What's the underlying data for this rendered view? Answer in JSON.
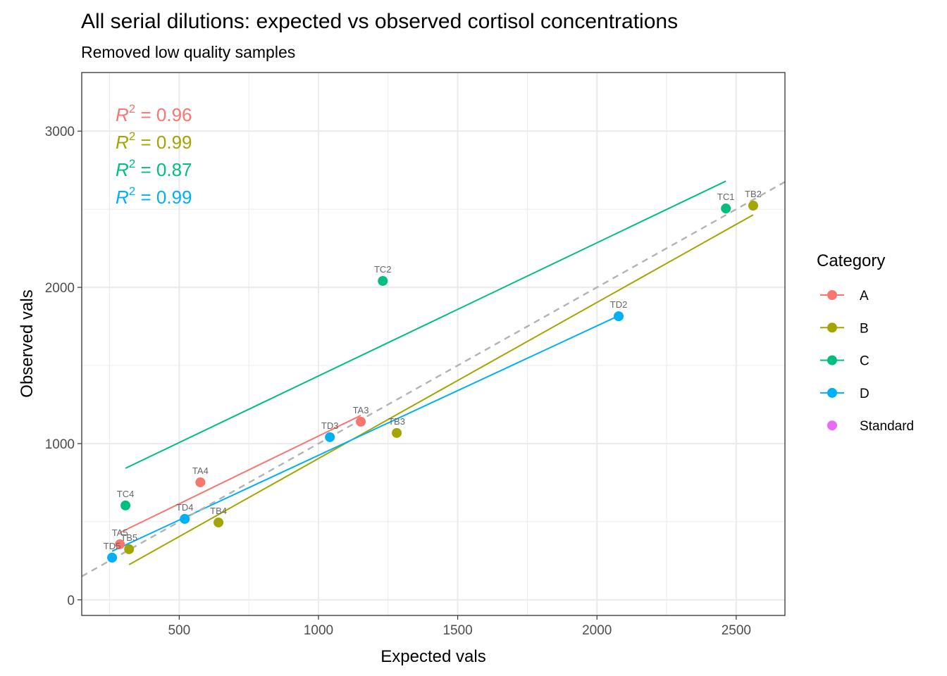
{
  "chart_data": {
    "type": "scatter",
    "title": "All serial dilutions: expected vs observed cortisol concentrations",
    "subtitle": "Removed low quality samples",
    "xlabel": "Expected vals",
    "ylabel": "Observed vals",
    "xlim": [
      150,
      2675
    ],
    "ylim": [
      -100,
      3375
    ],
    "xticks": [
      500,
      1000,
      1500,
      2000,
      2500
    ],
    "xminor": [
      250,
      750,
      1250,
      1750,
      2250
    ],
    "yticks": [
      0,
      1000,
      2000,
      3000
    ],
    "yminor": [
      500,
      1500,
      2500
    ],
    "grid": true,
    "reference_line": {
      "type": "identity",
      "style": "dashed",
      "color": "#b3b3b3"
    },
    "legend": {
      "title": "Category",
      "placement": "right",
      "entries": [
        {
          "name": "A",
          "color": "#F8766D",
          "line": true
        },
        {
          "name": "B",
          "color": "#A3A500",
          "line": true
        },
        {
          "name": "C",
          "color": "#00BF7D",
          "line": true
        },
        {
          "name": "D",
          "color": "#00B0F6",
          "line": true
        },
        {
          "name": "Standard",
          "color": "#E76BF3",
          "line": false
        }
      ]
    },
    "annotations": [
      {
        "label": "R",
        "sup": "2",
        "text": " = 0.96",
        "color": "#F8766D"
      },
      {
        "label": "R",
        "sup": "2",
        "text": " = 0.99",
        "color": "#A3A500"
      },
      {
        "label": "R",
        "sup": "2",
        "text": " = 0.87",
        "color": "#00BF7D"
      },
      {
        "label": "R",
        "sup": "2",
        "text": " = 0.99",
        "color": "#00B0F6"
      }
    ],
    "series": [
      {
        "name": "A",
        "color": "#F8766D",
        "fit": [
          [
            287,
            430
          ],
          [
            1152,
            1180
          ]
        ],
        "points": [
          {
            "label": "TA3",
            "x": 1152,
            "y": 1140
          },
          {
            "label": "TA4",
            "x": 576,
            "y": 752
          },
          {
            "label": "TA5",
            "x": 287,
            "y": 356
          }
        ]
      },
      {
        "name": "B",
        "color": "#A3A500",
        "fit": [
          [
            320,
            225
          ],
          [
            2561,
            2464
          ]
        ],
        "points": [
          {
            "label": "TB2",
            "x": 2561,
            "y": 2523
          },
          {
            "label": "TB3",
            "x": 1281,
            "y": 1068
          },
          {
            "label": "TB4",
            "x": 641,
            "y": 495
          },
          {
            "label": "TB5",
            "x": 320,
            "y": 324
          }
        ]
      },
      {
        "name": "C",
        "color": "#00BF7D",
        "fit": [
          [
            307,
            842
          ],
          [
            2463,
            2680
          ]
        ],
        "points": [
          {
            "label": "TC1",
            "x": 2463,
            "y": 2505
          },
          {
            "label": "TC2",
            "x": 1231,
            "y": 2041
          },
          {
            "label": "TC4",
            "x": 307,
            "y": 604
          }
        ]
      },
      {
        "name": "D",
        "color": "#00B0F6",
        "fit": [
          [
            259,
            311
          ],
          [
            2078,
            1818
          ]
        ],
        "points": [
          {
            "label": "TD2",
            "x": 2078,
            "y": 1815
          },
          {
            "label": "TD3",
            "x": 1041,
            "y": 1041
          },
          {
            "label": "TD4",
            "x": 520,
            "y": 518
          },
          {
            "label": "TD5",
            "x": 259,
            "y": 270
          }
        ]
      }
    ]
  }
}
